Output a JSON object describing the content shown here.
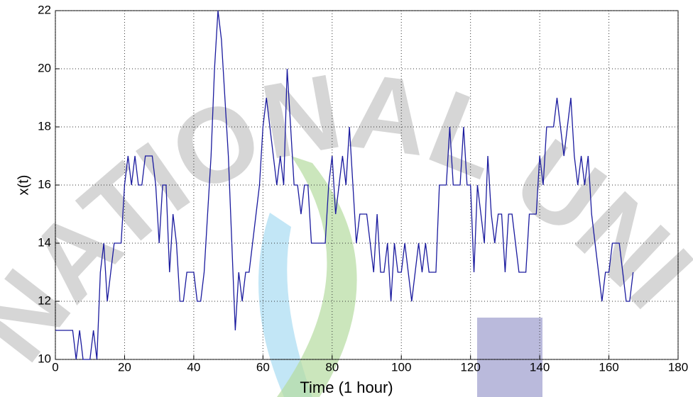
{
  "chart_data": {
    "type": "line",
    "watermark": "NATIONAL UNIVERSITY",
    "xlabel": "Time (1 hour)",
    "ylabel": "x(t)",
    "xlim": [
      0,
      180
    ],
    "xticks": [
      0,
      20,
      40,
      60,
      80,
      100,
      120,
      140,
      160,
      180
    ],
    "ylim": [
      10,
      22
    ],
    "yticks": [
      10,
      12,
      14,
      16,
      18,
      20,
      22
    ],
    "grid": true,
    "series": [
      {
        "color": "#1a1a9e",
        "x": [
          0,
          1,
          2,
          3,
          4,
          5,
          6,
          7,
          8,
          9,
          10,
          11,
          12,
          13,
          14,
          15,
          16,
          17,
          18,
          19,
          20,
          21,
          22,
          23,
          24,
          25,
          26,
          27,
          28,
          29,
          30,
          31,
          32,
          33,
          34,
          35,
          36,
          37,
          38,
          39,
          40,
          41,
          42,
          43,
          44,
          45,
          46,
          47,
          48,
          49,
          50,
          51,
          52,
          53,
          54,
          55,
          56,
          57,
          58,
          59,
          60,
          61,
          62,
          63,
          64,
          65,
          66,
          67,
          68,
          69,
          70,
          71,
          72,
          73,
          74,
          75,
          76,
          77,
          78,
          79,
          80,
          81,
          82,
          83,
          84,
          85,
          86,
          87,
          88,
          89,
          90,
          91,
          92,
          93,
          94,
          95,
          96,
          97,
          98,
          99,
          100,
          101,
          102,
          103,
          104,
          105,
          106,
          107,
          108,
          109,
          110,
          111,
          112,
          113,
          114,
          115,
          116,
          117,
          118,
          119,
          120,
          121,
          122,
          123,
          124,
          125,
          126,
          127,
          128,
          129,
          130,
          131,
          132,
          133,
          134,
          135,
          136,
          137,
          138,
          139,
          140,
          141,
          142,
          143,
          144,
          145,
          146,
          147,
          148,
          149,
          150,
          151,
          152,
          153,
          154,
          155,
          156,
          157,
          158,
          159,
          160,
          161,
          162,
          163,
          164,
          165,
          166,
          167
        ],
        "values": [
          11,
          11,
          11,
          11,
          11,
          11,
          10,
          11,
          10,
          10,
          10,
          11,
          10,
          13,
          14,
          12,
          13,
          14,
          14,
          14,
          16,
          17,
          16,
          17,
          16,
          16,
          17,
          17,
          17,
          16,
          14,
          16,
          16,
          13,
          15,
          14,
          12,
          12,
          13,
          13,
          13,
          12,
          12,
          13,
          15,
          17,
          20,
          22,
          21,
          19,
          17,
          14,
          11,
          13,
          12,
          13,
          13,
          14,
          15,
          16,
          18,
          19,
          18,
          17,
          16,
          17,
          16,
          20,
          18,
          16,
          16,
          15,
          16,
          16,
          14,
          14,
          14,
          14,
          14,
          16,
          17,
          15,
          16,
          17,
          16,
          18,
          16,
          14,
          15,
          15,
          15,
          14,
          13,
          15,
          13,
          13,
          14,
          12,
          14,
          13,
          13,
          14,
          13,
          12,
          13,
          14,
          13,
          14,
          13,
          13,
          13,
          16,
          16,
          16,
          18,
          16,
          16,
          16,
          18,
          16,
          16,
          13,
          16,
          15,
          14,
          17,
          15,
          14,
          15,
          15,
          13,
          15,
          15,
          14,
          13,
          13,
          13,
          15,
          15,
          15,
          17,
          16,
          18,
          18,
          18,
          19,
          18,
          17,
          18,
          19,
          17,
          16,
          17,
          16,
          17,
          15,
          14,
          13,
          12,
          13,
          13,
          14,
          14,
          14,
          13,
          12,
          12,
          13
        ]
      }
    ]
  }
}
